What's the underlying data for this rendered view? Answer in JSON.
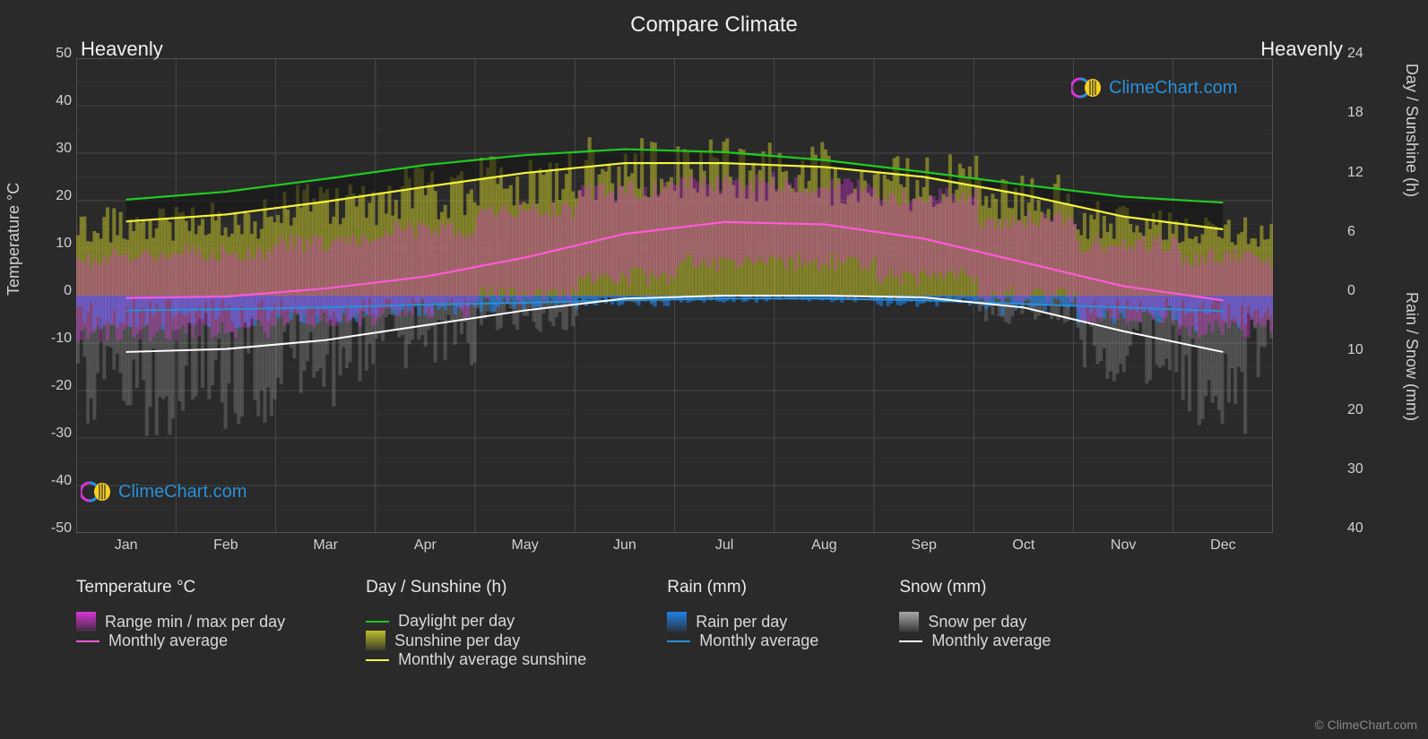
{
  "title": "Compare Climate",
  "location_left": "Heavenly",
  "location_right": "Heavenly",
  "axis_left_label": "Temperature °C",
  "axis_right_label_top": "Day / Sunshine (h)",
  "axis_right_label_bottom": "Rain / Snow (mm)",
  "footer": "© ClimeChart.com",
  "watermark_text": "ClimeChart.com",
  "background_color": "#2a2a2a",
  "grid_color": "#6a6a6a",
  "grid_color_minor": "#505050",
  "plot_bg": "#2a2a2a",
  "text_color": "#d0d0d0",
  "fontsize_title": 24,
  "fontsize_tick": 16,
  "fontsize_legend": 18,
  "y_left": {
    "min": -50,
    "max": 50,
    "step": 10,
    "ticks": [
      50,
      40,
      30,
      20,
      10,
      0,
      -10,
      -20,
      -30,
      -40,
      -50
    ]
  },
  "y_right_top": {
    "min": 0,
    "max": 24,
    "step": 6,
    "ticks": [
      24,
      18,
      12,
      6,
      0
    ]
  },
  "y_right_bottom": {
    "min": 0,
    "max": 40,
    "step": 10,
    "ticks": [
      0,
      10,
      20,
      30,
      40
    ]
  },
  "months": [
    "Jan",
    "Feb",
    "Mar",
    "Apr",
    "May",
    "Jun",
    "Jul",
    "Aug",
    "Sep",
    "Oct",
    "Nov",
    "Dec"
  ],
  "colors": {
    "daylight_line": "#1fcb1f",
    "sunshine_line": "#f5f53a",
    "sunshine_fill": "#bcbc2a",
    "temp_avg_line": "#ff5ad6",
    "temp_range_fill": "#d836d8",
    "rain_line": "#2890d8",
    "rain_fill": "#2080e8",
    "snow_line": "#ffffff",
    "snow_fill": "#a8a8a8"
  },
  "daylight_per_day": [
    9.7,
    10.5,
    11.8,
    13.2,
    14.2,
    14.8,
    14.5,
    13.7,
    12.5,
    11.2,
    10.0,
    9.4
  ],
  "sunshine_per_day": [
    7.5,
    8.2,
    9.5,
    11.0,
    12.4,
    13.4,
    13.4,
    13.0,
    12.0,
    10.2,
    8.0,
    6.7
  ],
  "temp_monthly_avg": [
    -0.5,
    -0.2,
    1.5,
    4.0,
    8.0,
    13.0,
    15.5,
    15.0,
    12.0,
    7.0,
    2.0,
    -1.0
  ],
  "temp_range_min": [
    -8,
    -7,
    -5,
    -3,
    0,
    4,
    7,
    7,
    4,
    0,
    -4,
    -7
  ],
  "temp_range_max": [
    8,
    9,
    11,
    14,
    18,
    22,
    24,
    23,
    21,
    16,
    11,
    8
  ],
  "rain_monthly_avg": [
    2.5,
    2.3,
    2.0,
    1.5,
    1.2,
    0.8,
    0.5,
    0.5,
    0.8,
    1.4,
    2.0,
    2.6
  ],
  "snow_monthly_avg": [
    9.5,
    9.0,
    7.5,
    5.0,
    2.5,
    0.5,
    0.0,
    0.0,
    0.3,
    2.0,
    6.0,
    9.5
  ],
  "legend": {
    "col1_title": "Temperature °C",
    "col1_items": [
      {
        "type": "swatch",
        "label": "Range min / max per day",
        "color": "#d836d8"
      },
      {
        "type": "line",
        "label": "Monthly average",
        "color": "#ff5ad6"
      }
    ],
    "col2_title": "Day / Sunshine (h)",
    "col2_items": [
      {
        "type": "line",
        "label": "Daylight per day",
        "color": "#1fcb1f"
      },
      {
        "type": "swatch",
        "label": "Sunshine per day",
        "color": "#bcbc2a"
      },
      {
        "type": "line",
        "label": "Monthly average sunshine",
        "color": "#f5f53a"
      }
    ],
    "col3_title": "Rain (mm)",
    "col3_items": [
      {
        "type": "swatch",
        "label": "Rain per day",
        "color": "#2080e8"
      },
      {
        "type": "line",
        "label": "Monthly average",
        "color": "#2890d8"
      }
    ],
    "col4_title": "Snow (mm)",
    "col4_items": [
      {
        "type": "swatch",
        "label": "Snow per day",
        "color": "#a8a8a8"
      },
      {
        "type": "line",
        "label": "Monthly average",
        "color": "#ffffff"
      }
    ]
  }
}
